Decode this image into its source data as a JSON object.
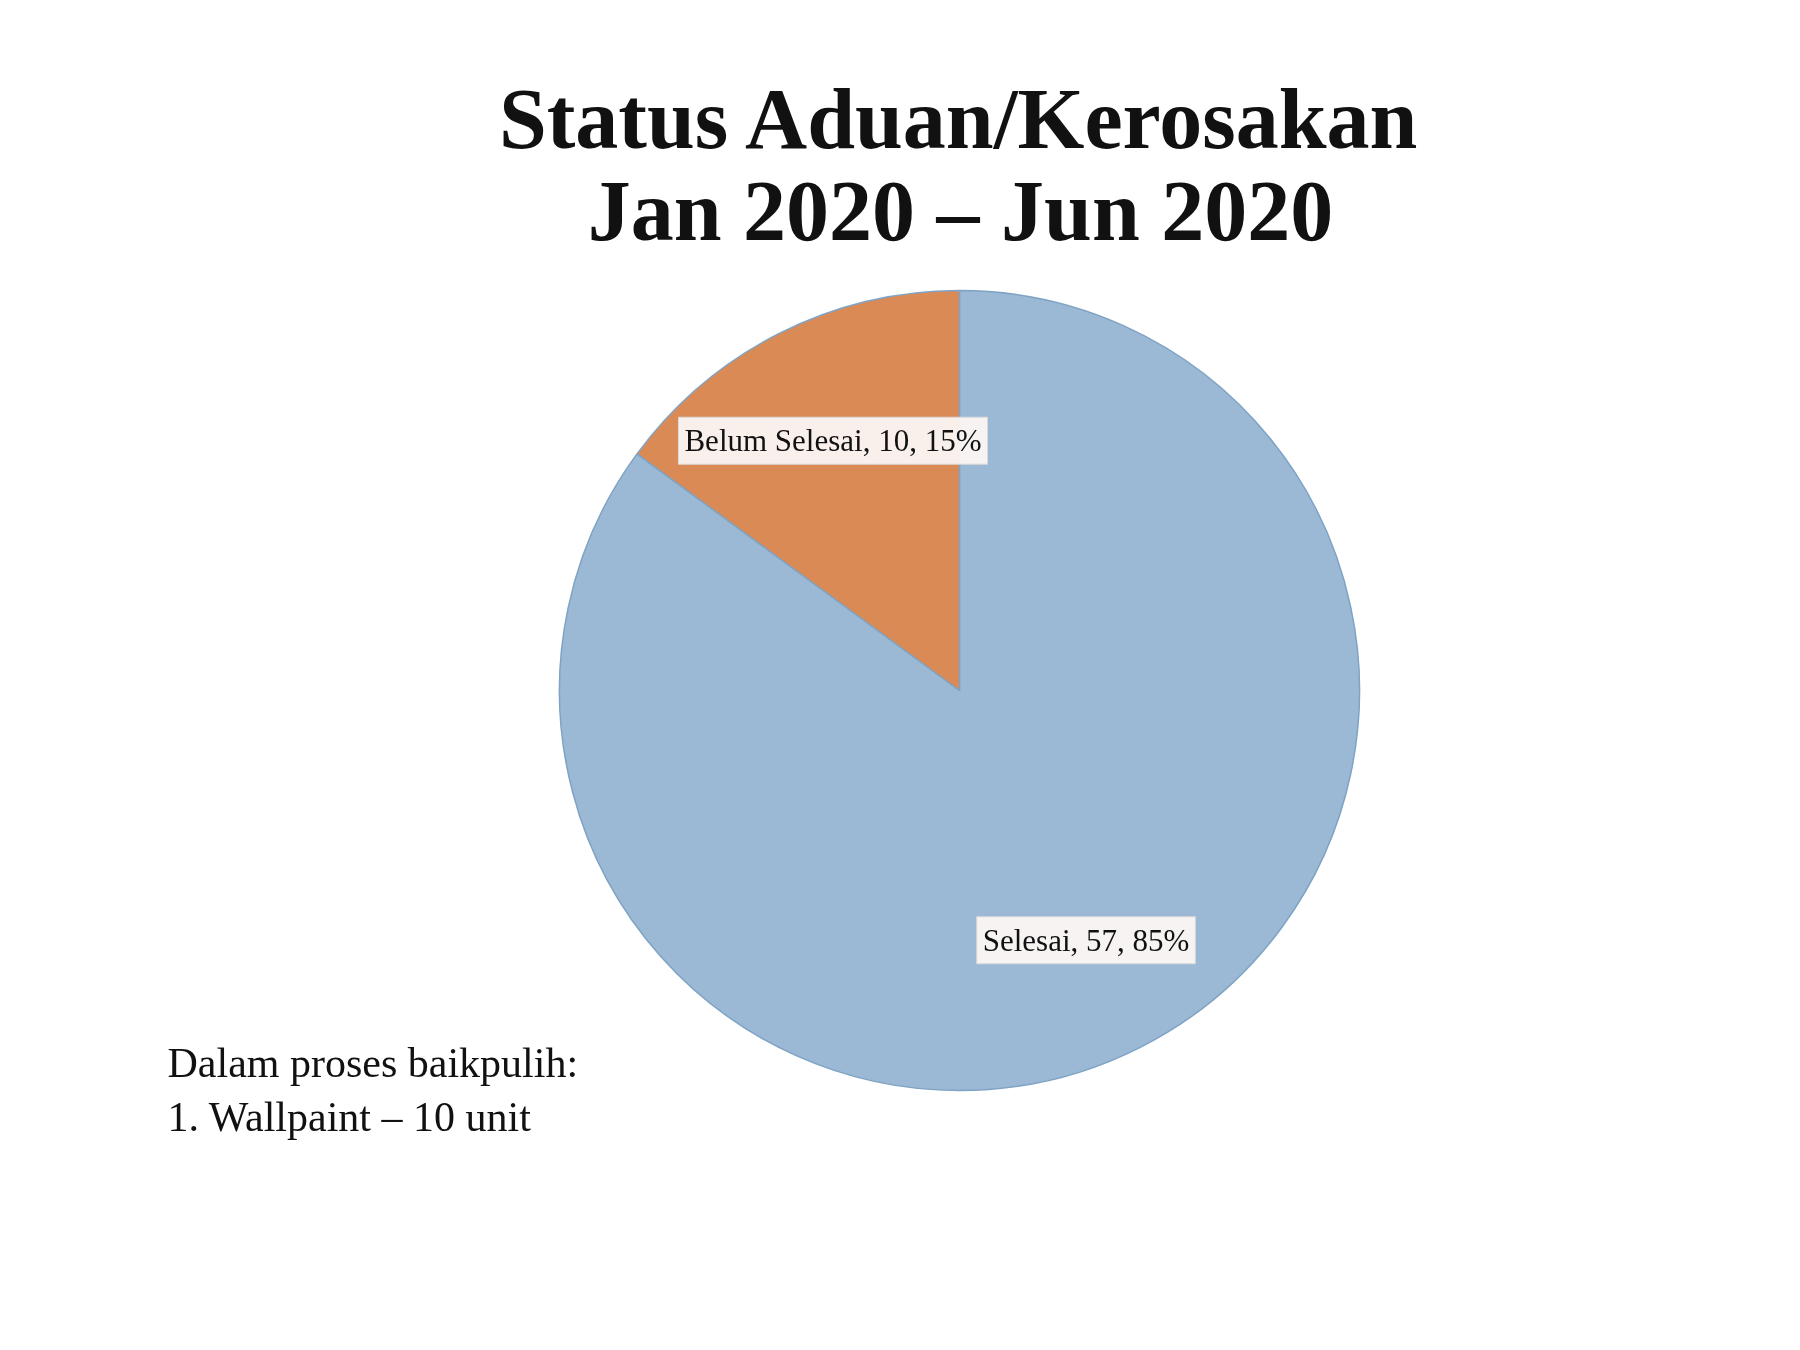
{
  "chart_data": {
    "type": "pie",
    "title": "Status Aduan/Kerosakan",
    "subtitle": "Jan 2020 – Jun 2020",
    "categories": [
      "Selesai",
      "Belum Selesai"
    ],
    "values": [
      57,
      10
    ],
    "colors": [
      "#9bb9d4",
      "#d98a55"
    ],
    "value_labels": [
      "57, 85%",
      "10, 15%"
    ],
    "annotations": [
      "Dalam proses baikpulih:",
      "1.   Wallpaint – 10 unit"
    ]
  }
}
